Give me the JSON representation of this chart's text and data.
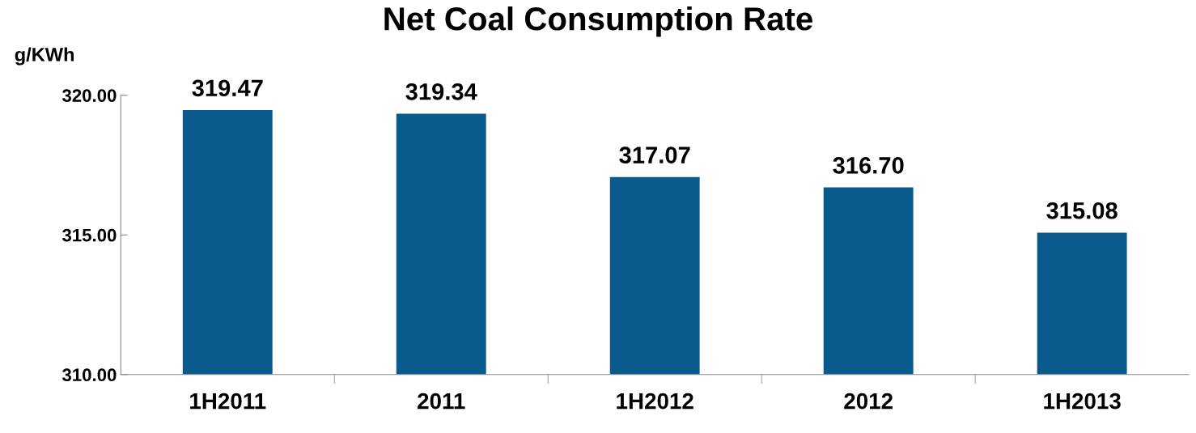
{
  "chart_data": {
    "type": "bar",
    "title": "Net Coal Consumption Rate",
    "ylabel": "g/KWh",
    "categories": [
      "1H2011",
      "2011",
      "1H2012",
      "2012",
      "1H2013"
    ],
    "values": [
      319.47,
      319.34,
      317.07,
      316.7,
      315.08
    ],
    "value_labels": [
      "319.47",
      "319.34",
      "317.07",
      "316.70",
      "315.08"
    ],
    "color": "#0a5a8e",
    "ylim": [
      310,
      320
    ],
    "yticks": [
      {
        "value": 310,
        "label": "310.00"
      },
      {
        "value": 315,
        "label": "315.00"
      },
      {
        "value": 320,
        "label": "320.00"
      }
    ],
    "grid": false,
    "legend": false
  }
}
